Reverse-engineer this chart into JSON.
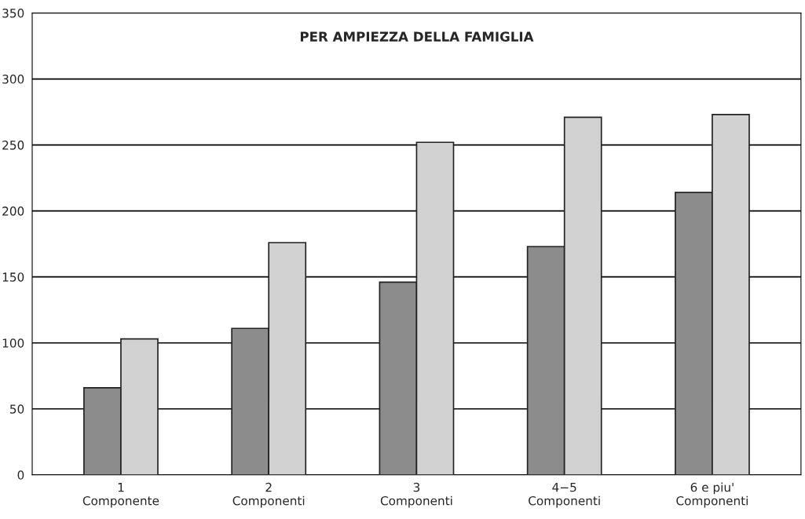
{
  "chart_data": {
    "type": "bar",
    "title": "PER AMPIEZZA DELLA FAMIGLIA",
    "categories": [
      "1\nComponente",
      "2\nComponenti",
      "3\nComponenti",
      "4−5\nComponenti",
      "6 e piu'\nComponenti"
    ],
    "series": [
      {
        "color": "#8c8c8c",
        "values": [
          66,
          111,
          146,
          173,
          214
        ]
      },
      {
        "color": "#d2d2d2",
        "values": [
          103,
          176,
          252,
          271,
          273
        ]
      }
    ],
    "ylim": [
      0,
      350
    ],
    "yticks": [
      0,
      50,
      100,
      150,
      200,
      250,
      300,
      350
    ],
    "grid": "y"
  }
}
